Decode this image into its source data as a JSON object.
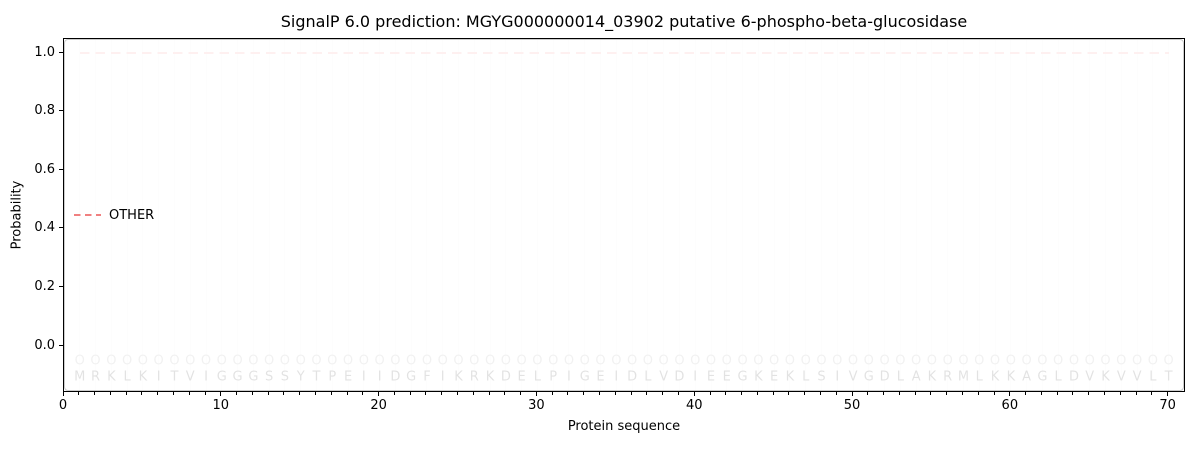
{
  "chart_data": {
    "type": "line",
    "title": "SignalP 6.0 prediction: MGYG000000014_03902 putative 6-phospho-beta-glucosidase",
    "xlabel": "Protein sequence",
    "ylabel": "Probability",
    "xlim": [
      0,
      71.1
    ],
    "ylim": [
      -0.16,
      1.048
    ],
    "x_ticks": [
      0,
      10,
      20,
      30,
      40,
      50,
      60,
      70
    ],
    "y_ticks": [
      "0.0",
      "0.2",
      "0.4",
      "0.6",
      "0.8",
      "1.0"
    ],
    "grid": {
      "axis": "x",
      "per_residue": true,
      "color": "#e9e9e9"
    },
    "legend": {
      "position": "upper-right",
      "entries": [
        {
          "label": "OTHER",
          "color": "#f08080",
          "linestyle": "dashed"
        }
      ]
    },
    "series": [
      {
        "name": "OTHER",
        "color": "#f08080",
        "linestyle": "dashed",
        "x_start": 1,
        "x_end": 70,
        "values": [
          1.0,
          1.0,
          1.0,
          1.0,
          1.0,
          1.0,
          1.0,
          1.0,
          1.0,
          1.0,
          1.0,
          1.0,
          1.0,
          1.0,
          1.0,
          1.0,
          1.0,
          1.0,
          1.0,
          1.0,
          1.0,
          1.0,
          1.0,
          1.0,
          1.0,
          1.0,
          1.0,
          1.0,
          1.0,
          1.0,
          1.0,
          1.0,
          1.0,
          1.0,
          1.0,
          1.0,
          1.0,
          1.0,
          1.0,
          1.0,
          1.0,
          1.0,
          1.0,
          1.0,
          1.0,
          1.0,
          1.0,
          1.0,
          1.0,
          1.0,
          1.0,
          1.0,
          1.0,
          1.0,
          1.0,
          1.0,
          1.0,
          1.0,
          1.0,
          1.0,
          1.0,
          1.0,
          1.0,
          1.0,
          1.0,
          1.0,
          1.0,
          1.0,
          1.0,
          1.0
        ]
      }
    ],
    "sequence": "MRKLKITVIGGGSSYTPEIIDGFIKRKDELPIGEIDLVDIEEGKEKLSIVGDLAKRMLKKAGLDVKVVLT",
    "per_residue_marker": "O",
    "marker_y": -0.051,
    "letter_y": -0.106
  },
  "colors": {
    "line_red": "#f08080",
    "gridline": "#e9e9e9",
    "marker_gray": "#8c8c8c",
    "letter_dark": "#141414",
    "spine": "#000000",
    "legend_border": "#cccccc"
  }
}
